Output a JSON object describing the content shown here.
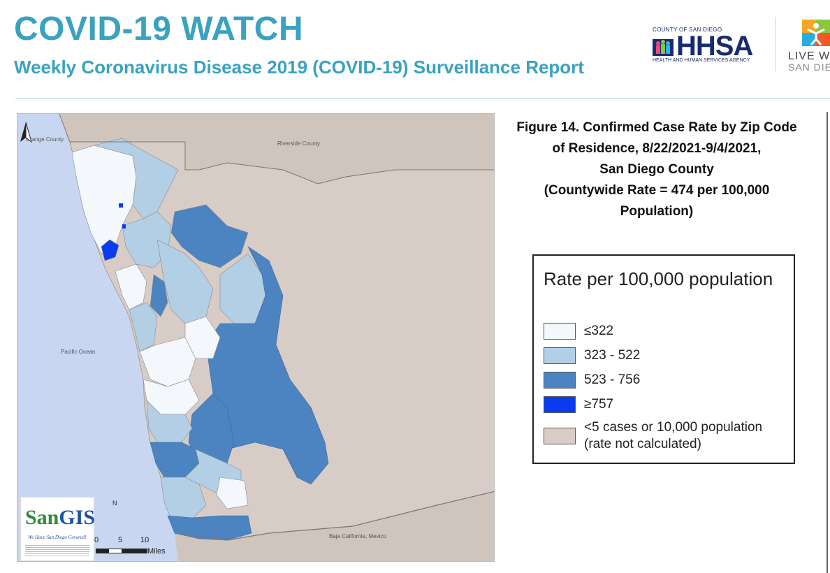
{
  "header": {
    "title": "COVID-19 WATCH",
    "subtitle": "Weekly Coronavirus Disease 2019 (COVID-19) Surveillance Report"
  },
  "logos": {
    "hhsa_county": "COUNTY OF SAN DIEGO",
    "hhsa_word": "HHSA",
    "hhsa_agency": "HEALTH AND HUMAN SERVICES AGENCY",
    "live_well_line1": "LIVE WE",
    "live_well_line2": "SAN DIE"
  },
  "figure": {
    "title_lines": [
      "Figure 14. Confirmed Case Rate by Zip Code",
      "of Residence, 8/22/2021-9/4/2021,",
      "San Diego County",
      "(Countywide Rate = 474 per 100,000",
      "Population)"
    ]
  },
  "legend": {
    "title": "Rate per 100,000 population",
    "items": [
      {
        "label": "≤322",
        "color": "#f4f8fd"
      },
      {
        "label": "323 - 522",
        "color": "#b3cfe6"
      },
      {
        "label": "523 - 756",
        "color": "#4b84c0"
      },
      {
        "label": "≥757",
        "color": "#0b3bef"
      },
      {
        "label": "<5 cases or 10,000 population",
        "label2": "(rate not calculated)",
        "color": "#d8cdc6"
      }
    ]
  },
  "map": {
    "labels": {
      "orange": "Orange County",
      "riverside": "Riverside County",
      "pacific": "Pacific Ocean",
      "baja": "Baja California, Mexico"
    },
    "scale": {
      "ticks": [
        "0",
        "5",
        "10"
      ],
      "unit": "Miles"
    },
    "north": "N",
    "sangis_word_a": "San",
    "sangis_word_b": "GIS",
    "sangis_tag": "We Have San Diego Covered!",
    "colors": {
      "ocean": "#c9d6f2",
      "outside": "#cfc5bd",
      "low": "#f4f8fd",
      "mid": "#b3cfe6",
      "high": "#4b84c0",
      "top": "#0b3bef",
      "na": "#d8cdc6"
    }
  }
}
